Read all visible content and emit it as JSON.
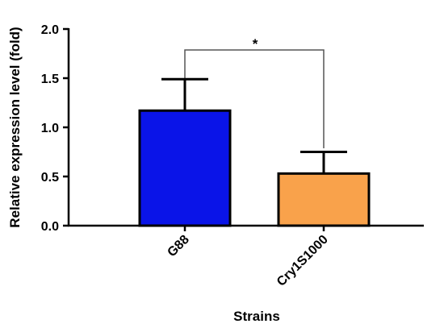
{
  "chart_data": {
    "type": "bar",
    "categories": [
      "G88",
      "Cry1S1000"
    ],
    "series": [
      {
        "values": [
          1.17,
          0.53
        ],
        "errors": [
          0.32,
          0.22
        ],
        "colors": [
          "#0a14e8",
          "#f9a24b"
        ]
      }
    ],
    "ylim": [
      0,
      2
    ],
    "yticks": [
      {
        "value": 0,
        "label": "0.0"
      },
      0.5,
      {
        "value": 1,
        "label": "1.0"
      },
      1.5,
      {
        "value": 2,
        "label": "2.0"
      }
    ],
    "xlabel": "Strains",
    "ylabel": "Relative expression level (fold)",
    "annotation": "*"
  }
}
